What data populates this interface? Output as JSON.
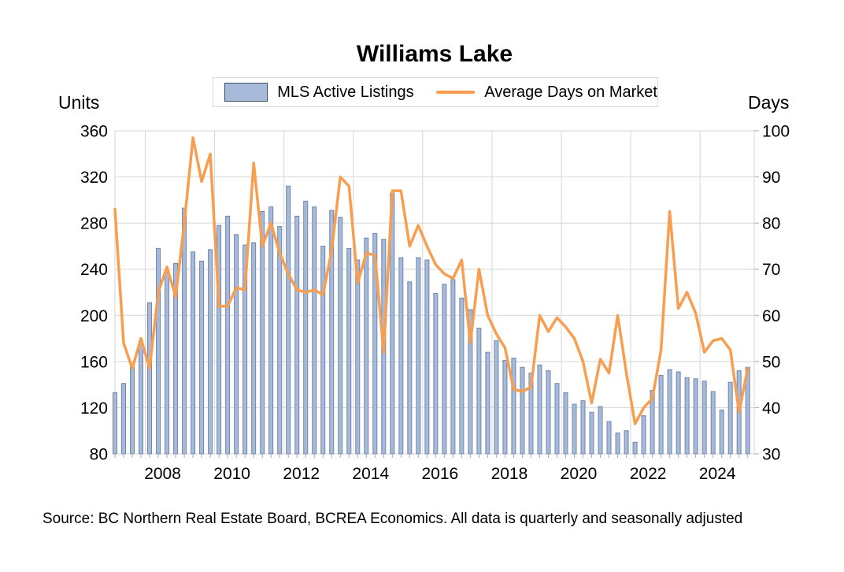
{
  "title": "Williams Lake",
  "legend": {
    "bars_label": "MLS Active Listings",
    "line_label": "Average Days on Market"
  },
  "left_axis": {
    "label": "Units",
    "ticks": [
      360,
      320,
      280,
      240,
      200,
      160,
      120,
      80
    ]
  },
  "right_axis": {
    "label": "Days",
    "ticks": [
      100,
      90,
      80,
      70,
      60,
      50,
      40,
      30
    ]
  },
  "x_axis": {
    "year_labels": [
      "2008",
      "2010",
      "2012",
      "2014",
      "2016",
      "2018",
      "2020",
      "2022",
      "2024"
    ]
  },
  "source": "Source: BC Northern Real Estate Board, BCREA Economics. All data is quarterly and seasonally adjusted",
  "colors": {
    "bar_fill": "#a8bad9",
    "bar_border": "#7186ab",
    "line": "#f89e50",
    "grid": "#d6d6d6",
    "tick_mark": "#a6a6a6",
    "legend_swatch_border": "#3f4e63",
    "legend_box_border": "#d9d9d9",
    "text": "#000000"
  },
  "chart_data": {
    "type": "bar+line combo",
    "frequency": "quarterly",
    "start_period": "2007 Q1",
    "end_period": "2025 Q2",
    "left_ylim": [
      80,
      360
    ],
    "right_ylim": [
      30,
      100
    ],
    "grid": "on",
    "legend_position": "top",
    "series": [
      {
        "name": "MLS Active Listings",
        "type": "bar",
        "axis": "left",
        "units": "Units",
        "values": [
          133,
          141,
          155,
          178,
          211,
          258,
          237,
          245,
          293,
          255,
          247,
          257,
          278,
          286,
          270,
          261,
          263,
          290,
          294,
          277,
          312,
          286,
          299,
          294,
          260,
          291,
          285,
          258,
          248,
          267,
          271,
          266,
          306,
          250,
          229,
          250,
          248,
          219,
          227,
          231,
          215,
          205,
          189,
          168,
          178,
          161,
          163,
          155,
          150,
          157,
          152,
          141,
          133,
          123,
          126,
          116,
          121,
          108,
          98,
          100,
          90,
          113,
          135,
          148,
          153,
          151,
          146,
          145,
          143,
          134,
          118,
          142,
          152,
          155
        ]
      },
      {
        "name": "Average Days on Market",
        "type": "line",
        "axis": "right",
        "units": "Days",
        "values": [
          83,
          54,
          48.5,
          55,
          48.5,
          65,
          70.5,
          64,
          80,
          98.5,
          89,
          95,
          62,
          62,
          66,
          65.5,
          93,
          75,
          80,
          73.5,
          69,
          65.5,
          65,
          65.5,
          64.5,
          74,
          90,
          88,
          67,
          73.5,
          73,
          52,
          87,
          87,
          75,
          79.5,
          75,
          71,
          69,
          68,
          72,
          54,
          70,
          60,
          56,
          53,
          44,
          43.5,
          44.5,
          60,
          56.5,
          59.5,
          57.5,
          55,
          50,
          41,
          50.5,
          47.5,
          60,
          47.5,
          36.5,
          40,
          42,
          52.5,
          82.5,
          61.5,
          65,
          60.5,
          52,
          54.5,
          55,
          52.5,
          39,
          48.5
        ]
      }
    ]
  }
}
